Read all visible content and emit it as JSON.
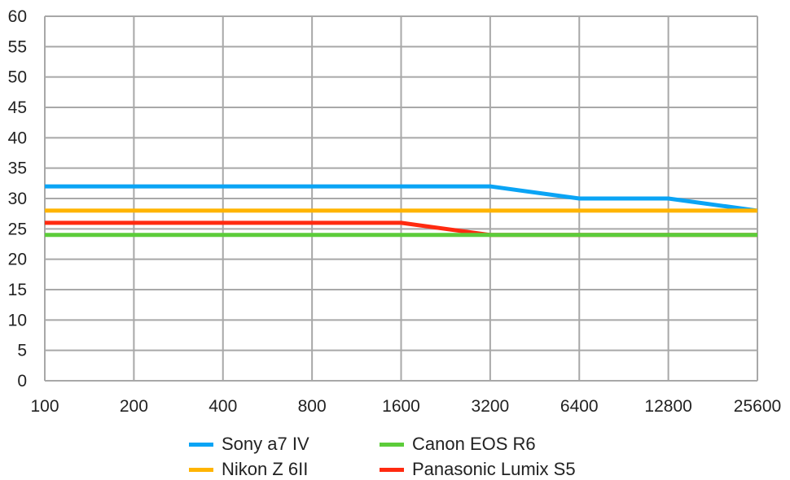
{
  "chart_data": {
    "type": "line",
    "title": "",
    "xlabel": "",
    "ylabel": "",
    "categories": [
      "100",
      "200",
      "400",
      "800",
      "1600",
      "3200",
      "6400",
      "12800",
      "25600"
    ],
    "ylim": [
      0,
      60
    ],
    "yticks": [
      "0",
      "5",
      "10",
      "15",
      "20",
      "25",
      "30",
      "35",
      "40",
      "45",
      "50",
      "55",
      "60"
    ],
    "grid": true,
    "legend_position": "bottom",
    "series": [
      {
        "name": "Sony a7 IV",
        "color": "#0aa4f5",
        "values": [
          32,
          32,
          32,
          32,
          32,
          32,
          30,
          30,
          28
        ]
      },
      {
        "name": "Nikon Z 6II",
        "color": "#ffb400",
        "values": [
          28,
          28,
          28,
          28,
          28,
          28,
          28,
          28,
          28
        ]
      },
      {
        "name": "Canon EOS R6",
        "color": "#5ccc3a",
        "values": [
          24,
          24,
          24,
          24,
          24,
          24,
          24,
          24,
          24
        ]
      },
      {
        "name": "Panasonic Lumix S5",
        "color": "#ff2a10",
        "values": [
          26,
          26,
          26,
          26,
          26,
          24,
          24,
          24,
          24
        ]
      }
    ]
  }
}
